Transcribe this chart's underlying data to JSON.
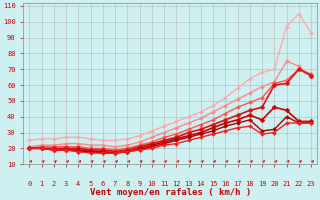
{
  "xlabel": "Vent moyen/en rafales ( km/h )",
  "background_color": "#cff0f0",
  "grid_color": "#aaaaaa",
  "x_ticks": [
    0,
    1,
    2,
    3,
    4,
    5,
    6,
    7,
    8,
    9,
    10,
    11,
    12,
    13,
    14,
    15,
    16,
    17,
    18,
    19,
    20,
    21,
    22,
    23
  ],
  "ylim": [
    10,
    112
  ],
  "xlim": [
    -0.5,
    23.5
  ],
  "yticks": [
    10,
    20,
    30,
    40,
    50,
    60,
    70,
    80,
    90,
    100,
    110
  ],
  "lines": [
    {
      "color": "#ffaaaa",
      "alpha": 1.0,
      "lw": 1.0,
      "marker": "D",
      "markersize": 2.0,
      "y": [
        25,
        26,
        26,
        27,
        27,
        26,
        25,
        25,
        26,
        28,
        31,
        34,
        37,
        40,
        43,
        47,
        52,
        58,
        64,
        68,
        70,
        97,
        105,
        93
      ]
    },
    {
      "color": "#ff8888",
      "alpha": 1.0,
      "lw": 1.0,
      "marker": "D",
      "markersize": 2.0,
      "y": [
        21,
        22,
        22,
        23,
        23,
        22,
        22,
        21,
        22,
        24,
        27,
        30,
        33,
        36,
        39,
        43,
        47,
        51,
        55,
        59,
        62,
        75,
        72,
        65
      ]
    },
    {
      "color": "#ff5555",
      "alpha": 1.0,
      "lw": 1.0,
      "marker": "D",
      "markersize": 2.0,
      "y": [
        20,
        21,
        21,
        21,
        21,
        20,
        20,
        19,
        20,
        22,
        24,
        27,
        29,
        32,
        35,
        38,
        42,
        46,
        49,
        52,
        61,
        63,
        70,
        67
      ]
    },
    {
      "color": "#dd1111",
      "alpha": 1.0,
      "lw": 1.2,
      "marker": "D",
      "markersize": 2.5,
      "y": [
        20,
        20,
        20,
        20,
        20,
        19,
        19,
        18,
        19,
        21,
        23,
        25,
        27,
        30,
        32,
        35,
        38,
        41,
        44,
        46,
        60,
        61,
        70,
        66
      ]
    },
    {
      "color": "#cc0000",
      "alpha": 1.0,
      "lw": 1.2,
      "marker": "D",
      "markersize": 2.5,
      "y": [
        20,
        20,
        19,
        19,
        19,
        18,
        18,
        17,
        18,
        20,
        22,
        24,
        26,
        28,
        30,
        33,
        36,
        38,
        41,
        38,
        46,
        44,
        37,
        37
      ]
    },
    {
      "color": "#aa0000",
      "alpha": 1.0,
      "lw": 1.0,
      "marker": "D",
      "markersize": 2.0,
      "y": [
        20,
        20,
        19,
        19,
        18,
        18,
        17,
        17,
        18,
        19,
        21,
        23,
        25,
        27,
        29,
        31,
        34,
        36,
        38,
        31,
        32,
        40,
        36,
        36
      ]
    },
    {
      "color": "#ee2222",
      "alpha": 1.0,
      "lw": 1.0,
      "marker": "D",
      "markersize": 2.0,
      "y": [
        20,
        20,
        19,
        19,
        18,
        17,
        17,
        17,
        18,
        19,
        20,
        22,
        23,
        25,
        27,
        29,
        31,
        33,
        34,
        29,
        30,
        36,
        36,
        36
      ]
    }
  ],
  "xlabel_color": "#cc0000",
  "tick_color": "#cc0000",
  "xlabel_fontsize": 6.5,
  "tick_fontsize": 5.0
}
